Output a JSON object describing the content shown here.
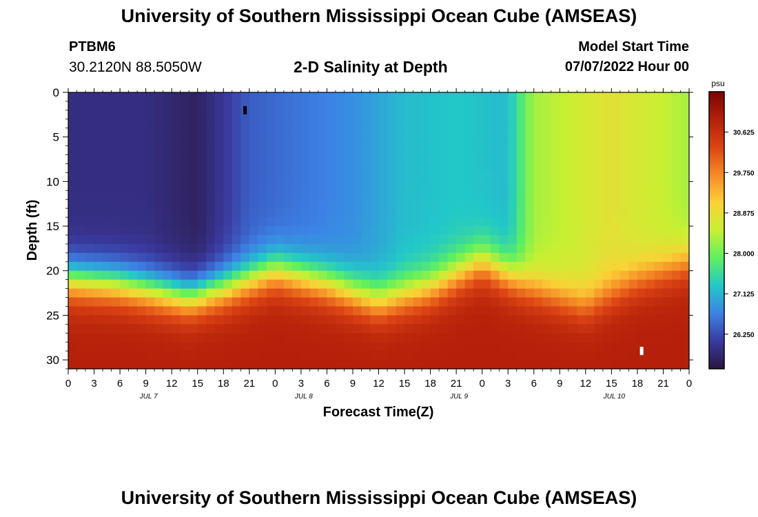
{
  "header": {
    "title": "University of Southern Mississippi Ocean Cube (AMSEAS)",
    "station_id": "PTBM6",
    "coordinates": "30.2120N  88.5050W",
    "plot_title": "2-D Salinity at Depth",
    "model_start_label": "Model Start Time",
    "model_start_value": "07/07/2022 Hour 00"
  },
  "footer": {
    "title": "University of Southern Mississippi Ocean Cube (AMSEAS)"
  },
  "chart_data": {
    "type": "heatmap",
    "title": "2-D Salinity at Depth",
    "xlabel": "Forecast Time(Z)",
    "ylabel": "Depth (ft)",
    "x_range_hours": [
      0,
      72
    ],
    "y_range_ft": [
      0,
      31
    ],
    "x_tick_hours": [
      0,
      3,
      6,
      9,
      12,
      15,
      18,
      21,
      24,
      27,
      30,
      33,
      36,
      39,
      42,
      45,
      48,
      51,
      54,
      57,
      60,
      63,
      66,
      69,
      72
    ],
    "x_tick_labels": [
      "0",
      "3",
      "6",
      "9",
      "12",
      "15",
      "18",
      "21",
      "0",
      "3",
      "6",
      "9",
      "12",
      "15",
      "18",
      "21",
      "0",
      "3",
      "6",
      "9",
      "12",
      "15",
      "18",
      "21",
      "0"
    ],
    "day_labels": [
      {
        "label": "JUL 7",
        "hour": 9
      },
      {
        "label": "JUL 8",
        "hour": 27
      },
      {
        "label": "JUL 9",
        "hour": 45
      },
      {
        "label": "JUL 10",
        "hour": 63
      }
    ],
    "y_ticks": [
      0,
      5,
      10,
      15,
      20,
      25,
      30
    ],
    "y_tick_labels": [
      "0",
      "5",
      "10",
      "15",
      "20",
      "25",
      "30"
    ],
    "colorbar": {
      "unit": "psu",
      "range": [
        25.5,
        31.5
      ],
      "ticks": [
        26.25,
        27.125,
        28.0,
        28.875,
        29.75,
        30.625
      ],
      "tick_labels": [
        "26.250",
        "27.125",
        "28.000",
        "28.875",
        "29.750",
        "30.625"
      ],
      "colors": [
        "#2a1640",
        "#3a3aa0",
        "#3c82e6",
        "#22c8c8",
        "#5ef060",
        "#c8f032",
        "#fad237",
        "#f68a26",
        "#dc4414",
        "#b4200a",
        "#7a0403"
      ]
    },
    "halocline_depth_ft": [
      {
        "hour": 0,
        "depth": 21
      },
      {
        "hour": 6,
        "depth": 21.5
      },
      {
        "hour": 14,
        "depth": 23
      },
      {
        "hour": 18,
        "depth": 22
      },
      {
        "hour": 24,
        "depth": 20
      },
      {
        "hour": 30,
        "depth": 21.5
      },
      {
        "hour": 36,
        "depth": 23.5
      },
      {
        "hour": 42,
        "depth": 22
      },
      {
        "hour": 48,
        "depth": 19
      },
      {
        "hour": 54,
        "depth": 22
      },
      {
        "hour": 60,
        "depth": 24
      },
      {
        "hour": 66,
        "depth": 21
      },
      {
        "hour": 72,
        "depth": 19
      }
    ],
    "surface_salinity_psu": [
      {
        "hour": 0,
        "value": 25.9
      },
      {
        "hour": 9,
        "value": 25.9
      },
      {
        "hour": 15,
        "value": 25.7
      },
      {
        "hour": 21,
        "value": 26.4
      },
      {
        "hour": 33,
        "value": 26.8
      },
      {
        "hour": 39,
        "value": 27.2
      },
      {
        "hour": 45,
        "value": 27.3
      },
      {
        "hour": 51,
        "value": 27.2
      },
      {
        "hour": 54,
        "value": 28.3
      },
      {
        "hour": 63,
        "value": 28.8
      },
      {
        "hour": 69,
        "value": 28.5
      },
      {
        "hour": 72,
        "value": 28.3
      }
    ],
    "bottom_salinity_psu": 30.9,
    "markers": [
      {
        "hour": 20.5,
        "depth_ft": 2,
        "color": "#000000"
      },
      {
        "hour": 66.5,
        "depth_ft": 29,
        "color": "#ffffff"
      }
    ]
  }
}
